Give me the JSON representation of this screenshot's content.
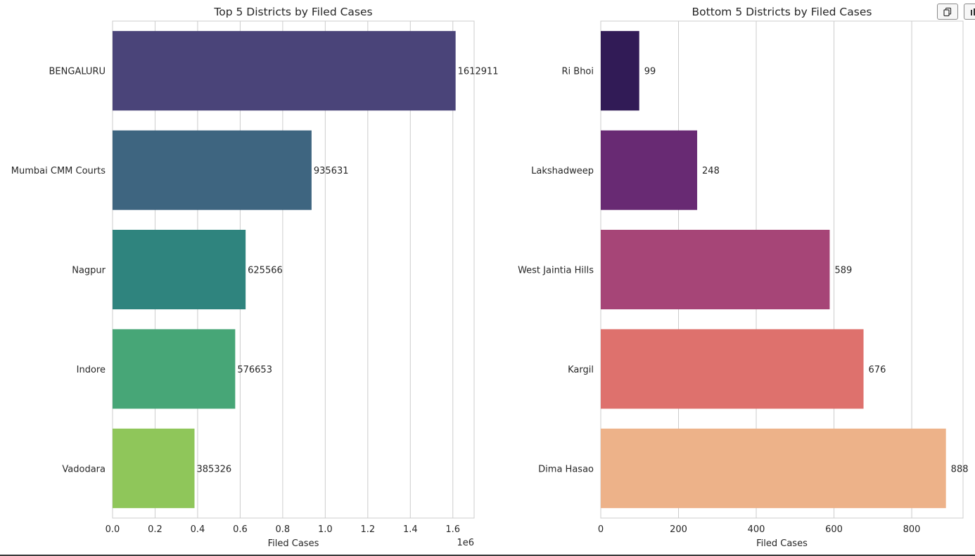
{
  "toolbar": {
    "copy_icon": "copy-icon",
    "extra_icon": "bar-chart-icon"
  },
  "chart_data": [
    {
      "type": "bar",
      "orientation": "horizontal",
      "title": "Top 5 Districts by Filed Cases",
      "xlabel": "Filed Cases",
      "ylabel": "",
      "offset_label": "1e6",
      "categories": [
        "BENGALURU",
        "Mumbai CMM Courts",
        "Nagpur",
        "Indore",
        "Vadodara"
      ],
      "values": [
        1612911,
        935631,
        625566,
        576653,
        385326
      ],
      "data_labels": [
        "1612911",
        "935631",
        "625566",
        "576653",
        "385326"
      ],
      "colors": [
        "#4a4479",
        "#3e6580",
        "#2f847e",
        "#47a677",
        "#8fc65a"
      ],
      "xlim": [
        0,
        1700000
      ],
      "ticks": [
        0,
        200000,
        400000,
        600000,
        800000,
        1000000,
        1200000,
        1400000,
        1600000
      ],
      "tick_labels": [
        "0.0",
        "0.2",
        "0.4",
        "0.6",
        "0.8",
        "1.0",
        "1.2",
        "1.4",
        "1.6"
      ],
      "grid": true
    },
    {
      "type": "bar",
      "orientation": "horizontal",
      "title": "Bottom 5 Districts by Filed Cases",
      "xlabel": "Filed Cases",
      "ylabel": "",
      "offset_label": "",
      "categories": [
        "Ri Bhoi",
        "Lakshadweep",
        "West Jaintia Hills",
        "Kargil",
        "Dima Hasao"
      ],
      "values": [
        99,
        248,
        589,
        676,
        888
      ],
      "data_labels": [
        "99",
        "248",
        "589",
        "676",
        "888"
      ],
      "colors": [
        "#311b56",
        "#682a73",
        "#a64577",
        "#de716d",
        "#edb289"
      ],
      "xlim": [
        0,
        932
      ],
      "ticks": [
        0,
        200,
        400,
        600,
        800
      ],
      "tick_labels": [
        "0",
        "200",
        "400",
        "600",
        "800"
      ],
      "grid": true
    }
  ]
}
